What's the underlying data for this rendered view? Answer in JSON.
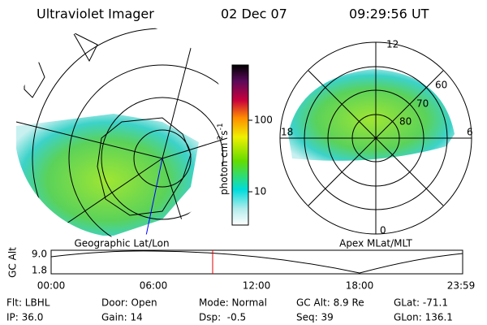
{
  "header": {
    "title": "Ultraviolet Imager",
    "date": "02 Dec 07",
    "time": "09:29:56 UT"
  },
  "colorbar": {
    "label": [
      "photon cm",
      "-2",
      "s",
      "-1"
    ],
    "ticks": [
      "100",
      "10"
    ]
  },
  "left_plot": {
    "caption": "Geographic Lat/Lon"
  },
  "right_plot": {
    "caption": "Apex MLat/MLT",
    "mlt_labels": [
      "12",
      "6",
      "0",
      "18"
    ],
    "mlat_labels": [
      "60",
      "70",
      "80"
    ]
  },
  "timeline": {
    "ylabel": "GC Alt",
    "yticks": [
      "9.0",
      "1.8"
    ],
    "xticks": [
      "00:00",
      "06:00",
      "12:00",
      "18:00",
      "23:59"
    ]
  },
  "footer": {
    "rows": [
      [
        "Flt: LBHL",
        "Door: Open",
        "Mode: Normal",
        "GC Alt: 8.9 Re",
        "GLat: -71.1"
      ],
      [
        "IP: 36.0",
        "Gain: 14",
        "Dsp:  -0.5",
        "Seq: 39",
        "GLon: 136.1"
      ]
    ]
  }
}
